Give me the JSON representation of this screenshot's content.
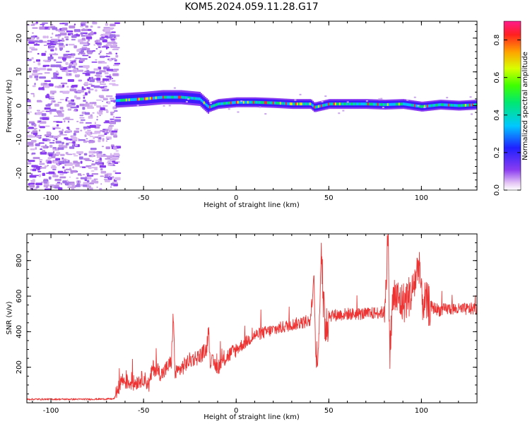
{
  "title": "KOM5.2024.059.11.28.G17",
  "colors": {
    "snr_line": "#ee3333",
    "axis": "#000000",
    "noise": "#c9a3ec"
  },
  "chart_data": [
    {
      "type": "heatmap",
      "xlabel": "Height of straight line (km)",
      "ylabel": "Frequency (Hz)",
      "xlim": [
        -113,
        130
      ],
      "ylim": [
        -25,
        25
      ],
      "xticks": [
        -100,
        -50,
        0,
        50,
        100
      ],
      "yticks": [
        -20,
        -10,
        0,
        10,
        20
      ],
      "signal_start_x": -65,
      "centerline": {
        "x": [
          -65,
          -50,
          -40,
          -30,
          -20,
          -15,
          -10,
          0,
          10,
          20,
          30,
          40,
          42,
          50,
          60,
          70,
          80,
          90,
          100,
          110,
          120,
          130
        ],
        "y": [
          1.5,
          2.0,
          2.5,
          2.5,
          2.0,
          -0.5,
          0.5,
          1.0,
          1.0,
          0.8,
          0.5,
          0.5,
          -0.5,
          0.5,
          0.5,
          0.5,
          0.3,
          0.5,
          -0.3,
          0.3,
          0.0,
          0.3
        ]
      },
      "colorbar": {
        "label": "Normalized spectral amplitude",
        "range": [
          0.0,
          0.9
        ],
        "ticks": [
          "0.0",
          "0.2",
          "0.4",
          "0.6",
          "0.8"
        ]
      }
    },
    {
      "type": "line",
      "xlabel": "Height of straight line (km)",
      "ylabel": "SNR (v/v)",
      "xlim": [
        -113,
        130
      ],
      "ylim": [
        0,
        950
      ],
      "xticks": [
        -100,
        -50,
        0,
        50,
        100
      ],
      "yticks": [
        200,
        400,
        600,
        800
      ],
      "series": [
        {
          "x": [
            -113,
            -100,
            -80,
            -66,
            -64,
            -62,
            -60,
            -55,
            -50,
            -47,
            -45,
            -40,
            -35,
            -34,
            -33,
            -30,
            -25,
            -20,
            -16,
            -15,
            -14,
            -10,
            -5,
            0,
            5,
            10,
            20,
            30,
            40,
            42,
            43,
            44,
            45,
            46,
            47,
            48,
            50,
            60,
            70,
            80,
            82,
            83,
            84,
            85,
            90,
            95,
            99,
            100,
            105,
            110,
            115,
            120,
            130
          ],
          "y": [
            20,
            20,
            20,
            22,
            60,
            130,
            120,
            110,
            140,
            100,
            200,
            160,
            230,
            500,
            160,
            190,
            240,
            260,
            300,
            420,
            240,
            200,
            260,
            300,
            340,
            380,
            410,
            440,
            460,
            700,
            240,
            200,
            480,
            920,
            500,
            450,
            490,
            500,
            500,
            510,
            940,
            260,
            500,
            600,
            560,
            620,
            800,
            580,
            540,
            520,
            530,
            525,
            530
          ]
        }
      ]
    }
  ]
}
